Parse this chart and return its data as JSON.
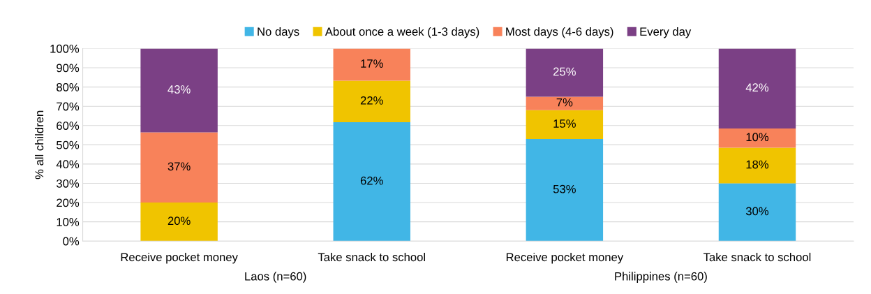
{
  "chart_data": {
    "type": "bar",
    "stacked": true,
    "categories": [
      "Receive pocket money",
      "Take snack to school",
      "Receive pocket money",
      "Take snack to school"
    ],
    "annotations": [
      "Laos (n=60)",
      "Philippines (n=60)"
    ],
    "ylabel": "% all children",
    "ylim": [
      0,
      100
    ],
    "yticks": [
      {
        "value": 0,
        "label": "0%"
      },
      {
        "value": 10,
        "label": "10%"
      },
      {
        "value": 20,
        "label": "20%"
      },
      {
        "value": 30,
        "label": "30%"
      },
      {
        "value": 40,
        "label": "40%"
      },
      {
        "value": 50,
        "label": "50%"
      },
      {
        "value": 60,
        "label": "60%"
      },
      {
        "value": 70,
        "label": "70%"
      },
      {
        "value": 80,
        "label": "80%"
      },
      {
        "value": 90,
        "label": "90%"
      },
      {
        "value": 100,
        "label": "100%"
      }
    ],
    "grid": "y",
    "legend": "top",
    "series": [
      {
        "name": "No days",
        "color": "#41b6e6",
        "values": [
          0,
          61.7,
          53,
          30
        ],
        "value_labels": [
          null,
          "62%",
          "53%",
          "30%"
        ]
      },
      {
        "name": "About once a week (1-3 days)",
        "color": "#f0c400",
        "values": [
          20,
          21.6,
          15,
          18.5
        ],
        "value_labels": [
          "20%",
          "22%",
          "15%",
          "18%"
        ]
      },
      {
        "name": "Most days (4-6 days)",
        "color": "#f8825a",
        "values": [
          36.5,
          16.7,
          7,
          10
        ],
        "value_labels": [
          "37%",
          "17%",
          "7%",
          "10%"
        ]
      },
      {
        "name": "Every day",
        "color": "#7b4085",
        "values": [
          43.5,
          0,
          25,
          41.5
        ],
        "value_labels": [
          "43%",
          null,
          "25%",
          "42%"
        ]
      }
    ]
  }
}
